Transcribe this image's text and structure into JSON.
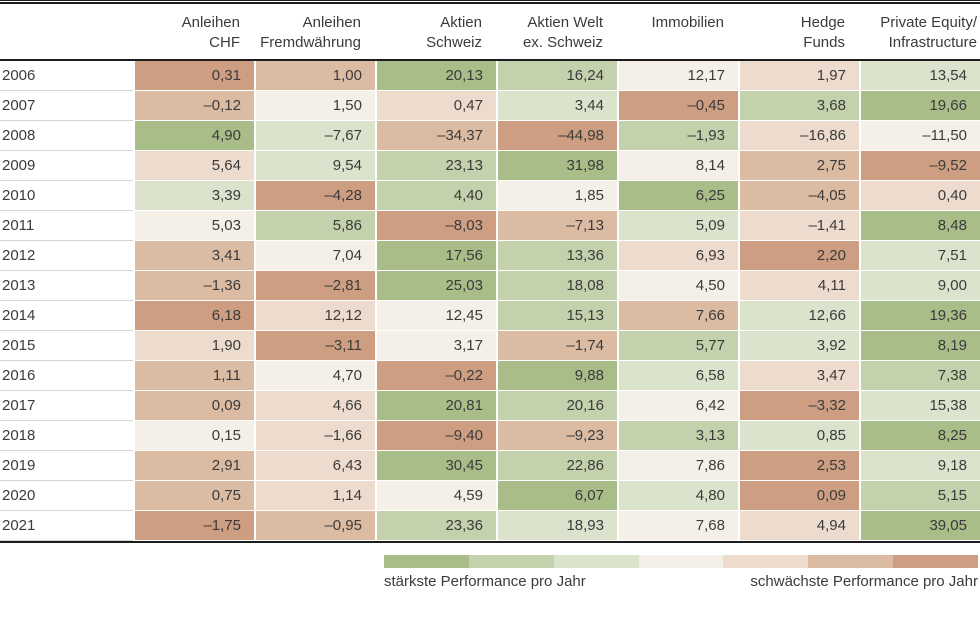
{
  "chart_data": {
    "type": "heatmap",
    "coloring": "rank_per_row_best_to_worst",
    "columns": [
      {
        "lines": [
          "Anleihen",
          "CHF"
        ]
      },
      {
        "lines": [
          "Anleihen",
          "Fremdwährung"
        ]
      },
      {
        "lines": [
          "Aktien",
          "Schweiz"
        ]
      },
      {
        "lines": [
          "Aktien Welt",
          "ex. Schweiz"
        ]
      },
      {
        "lines": [
          "Immobilien"
        ]
      },
      {
        "lines": [
          "Hedge",
          "Funds"
        ]
      },
      {
        "lines": [
          "Private Equity/",
          "Infrastructure"
        ]
      }
    ],
    "years": [
      "2006",
      "2007",
      "2008",
      "2009",
      "2010",
      "2011",
      "2012",
      "2013",
      "2014",
      "2015",
      "2016",
      "2017",
      "2018",
      "2019",
      "2020",
      "2021"
    ],
    "values": [
      [
        0.31,
        1.0,
        20.13,
        16.24,
        12.17,
        1.97,
        13.54
      ],
      [
        -0.12,
        1.5,
        0.47,
        3.44,
        -0.45,
        3.68,
        19.66
      ],
      [
        4.9,
        -7.67,
        -34.37,
        -44.98,
        -1.93,
        -16.86,
        -11.5
      ],
      [
        5.64,
        9.54,
        23.13,
        31.98,
        8.14,
        2.75,
        -9.52
      ],
      [
        3.39,
        -4.28,
        4.4,
        1.85,
        6.25,
        -4.05,
        0.4
      ],
      [
        5.03,
        5.86,
        -8.03,
        -7.13,
        5.09,
        -1.41,
        8.48
      ],
      [
        3.41,
        7.04,
        17.56,
        13.36,
        6.93,
        2.2,
        7.51
      ],
      [
        -1.36,
        -2.81,
        25.03,
        18.08,
        4.5,
        4.11,
        9.0
      ],
      [
        6.18,
        12.12,
        12.45,
        15.13,
        7.66,
        12.66,
        19.36
      ],
      [
        1.9,
        -3.11,
        3.17,
        -1.74,
        5.77,
        3.92,
        8.19
      ],
      [
        1.11,
        4.7,
        -0.22,
        9.88,
        6.58,
        3.47,
        7.38
      ],
      [
        0.09,
        4.66,
        20.81,
        20.16,
        6.42,
        -3.32,
        15.38
      ],
      [
        0.15,
        -1.66,
        -9.4,
        -9.23,
        3.13,
        0.85,
        8.25
      ],
      [
        2.91,
        6.43,
        30.45,
        22.86,
        7.86,
        2.53,
        9.18
      ],
      [
        0.75,
        1.14,
        4.59,
        6.07,
        4.8,
        0.09,
        5.15
      ],
      [
        -1.75,
        -0.95,
        23.36,
        18.93,
        7.68,
        4.94,
        39.05
      ]
    ],
    "color_ramp_best_to_worst": [
      "#a9bd88",
      "#c3d1ac",
      "#dce3cc",
      "#f4f0e7",
      "#eddcce",
      "#dcbba3",
      "#cd9e81"
    ],
    "legend": {
      "best_label": "stärkste Performance pro Jahr",
      "worst_label": "schwächste Performance pro Jahr"
    },
    "colors": {
      "text": "#3b3b3b",
      "rule": "#1c1c1c",
      "year_row_separator": "#d4d4d4",
      "background": "#ffffff"
    }
  }
}
